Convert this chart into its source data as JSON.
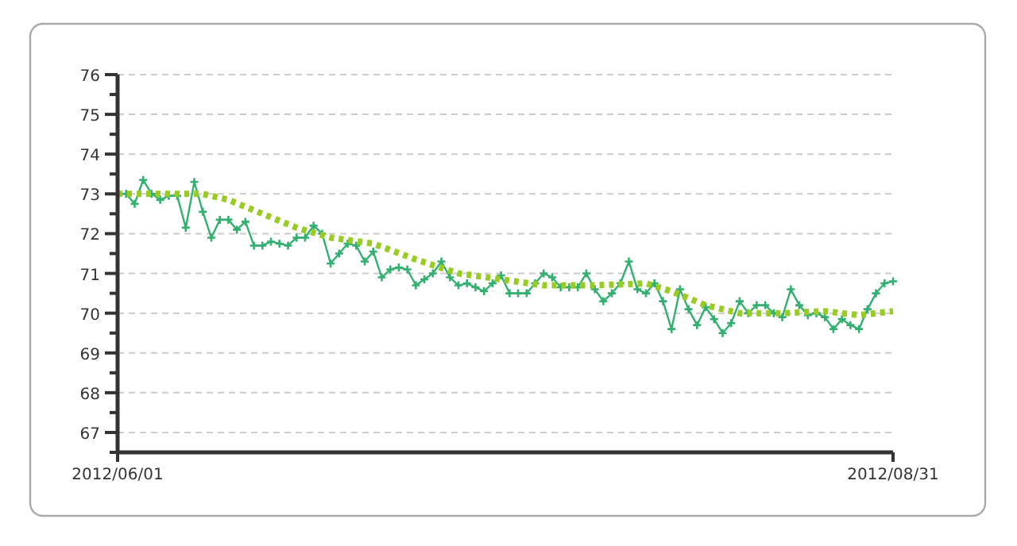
{
  "chart_data": {
    "type": "line",
    "x": [
      "2012-06-01",
      "2012-06-02",
      "2012-06-03",
      "2012-06-04",
      "2012-06-05",
      "2012-06-06",
      "2012-06-07",
      "2012-06-08",
      "2012-06-09",
      "2012-06-10",
      "2012-06-11",
      "2012-06-12",
      "2012-06-13",
      "2012-06-14",
      "2012-06-15",
      "2012-06-16",
      "2012-06-17",
      "2012-06-18",
      "2012-06-19",
      "2012-06-20",
      "2012-06-21",
      "2012-06-22",
      "2012-06-23",
      "2012-06-24",
      "2012-06-25",
      "2012-06-26",
      "2012-06-27",
      "2012-06-28",
      "2012-06-29",
      "2012-06-30",
      "2012-07-01",
      "2012-07-02",
      "2012-07-03",
      "2012-07-04",
      "2012-07-05",
      "2012-07-06",
      "2012-07-07",
      "2012-07-08",
      "2012-07-09",
      "2012-07-10",
      "2012-07-11",
      "2012-07-12",
      "2012-07-13",
      "2012-07-14",
      "2012-07-15",
      "2012-07-16",
      "2012-07-17",
      "2012-07-18",
      "2012-07-19",
      "2012-07-20",
      "2012-07-21",
      "2012-07-22",
      "2012-07-23",
      "2012-07-24",
      "2012-07-25",
      "2012-07-26",
      "2012-07-27",
      "2012-07-28",
      "2012-07-29",
      "2012-07-30",
      "2012-07-31",
      "2012-08-01",
      "2012-08-02",
      "2012-08-03",
      "2012-08-04",
      "2012-08-05",
      "2012-08-06",
      "2012-08-07",
      "2012-08-08",
      "2012-08-09",
      "2012-08-10",
      "2012-08-11",
      "2012-08-12",
      "2012-08-13",
      "2012-08-14",
      "2012-08-15",
      "2012-08-16",
      "2012-08-17",
      "2012-08-18",
      "2012-08-19",
      "2012-08-20",
      "2012-08-21",
      "2012-08-22",
      "2012-08-23",
      "2012-08-24",
      "2012-08-25",
      "2012-08-26",
      "2012-08-27",
      "2012-08-28",
      "2012-08-29",
      "2012-08-30",
      "2012-08-31"
    ],
    "series": [
      {
        "color": "#33b070",
        "marker": "cross",
        "line_style": "solid",
        "values": [
          73.0,
          73.0,
          72.75,
          73.35,
          73.0,
          72.85,
          72.95,
          72.95,
          72.15,
          73.3,
          72.55,
          71.9,
          72.35,
          72.35,
          72.1,
          72.3,
          71.7,
          71.7,
          71.8,
          71.75,
          71.7,
          71.9,
          71.9,
          72.2,
          72.0,
          71.25,
          71.5,
          71.75,
          71.7,
          71.3,
          71.55,
          70.9,
          71.1,
          71.15,
          71.1,
          70.7,
          70.85,
          71.0,
          71.3,
          70.9,
          70.7,
          70.75,
          70.65,
          70.55,
          70.75,
          70.95,
          70.5,
          70.5,
          70.5,
          70.75,
          71.0,
          70.9,
          70.65,
          70.65,
          70.65,
          71.0,
          70.6,
          70.3,
          70.5,
          70.75,
          71.3,
          70.6,
          70.5,
          70.75,
          70.3,
          69.6,
          70.6,
          70.1,
          69.7,
          70.15,
          69.85,
          69.5,
          69.75,
          70.3,
          70.0,
          70.2,
          70.2,
          70.0,
          69.9,
          70.6,
          70.2,
          69.95,
          70.0,
          69.9,
          69.6,
          69.85,
          69.7,
          69.6,
          70.1,
          70.5,
          70.75,
          70.8
        ]
      },
      {
        "color": "#99cc22",
        "marker": "none",
        "line_style": "dotted",
        "x": [
          "2012-06-01",
          "2012-06-11",
          "2012-06-14",
          "2012-06-18",
          "2012-06-22",
          "2012-06-26",
          "2012-07-01",
          "2012-07-06",
          "2012-07-11",
          "2012-07-16",
          "2012-07-21",
          "2012-07-27",
          "2012-08-02",
          "2012-08-05",
          "2012-08-09",
          "2012-08-13",
          "2012-08-18",
          "2012-08-23",
          "2012-08-27",
          "2012-08-31"
        ],
        "values": [
          73.0,
          73.0,
          72.85,
          72.5,
          72.15,
          71.9,
          71.75,
          71.35,
          71.0,
          70.85,
          70.7,
          70.7,
          70.75,
          70.55,
          70.2,
          70.0,
          70.0,
          70.05,
          69.95,
          70.05
        ]
      }
    ],
    "xlim": [
      "2012-06-01",
      "2012-08-31"
    ],
    "xticks": [
      {
        "value": "2012-06-01",
        "label": "2012/06/01"
      },
      {
        "value": "2012-08-31",
        "label": "2012/08/31"
      }
    ],
    "ylim": [
      66.5,
      76
    ],
    "yticks": [
      {
        "value": 66.5,
        "label": null
      },
      67,
      {
        "value": 67.5,
        "label": null
      },
      68,
      {
        "value": 68.5,
        "label": null
      },
      69,
      {
        "value": 69.5,
        "label": null
      },
      70,
      {
        "value": 70.5,
        "label": null
      },
      71,
      {
        "value": 71.5,
        "label": null
      },
      72,
      {
        "value": 72.5,
        "label": null
      },
      73,
      {
        "value": 73.5,
        "label": null
      },
      74,
      {
        "value": 74.5,
        "label": null
      },
      75,
      {
        "value": 75.5,
        "label": null
      },
      76
    ],
    "grid": "y"
  }
}
